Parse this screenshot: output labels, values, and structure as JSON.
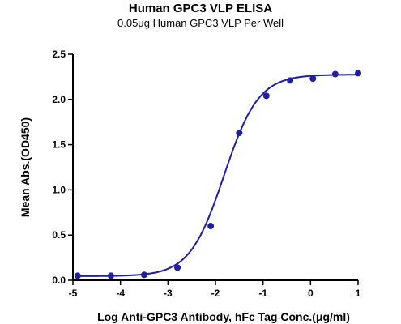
{
  "chart_data": {
    "type": "scatter",
    "title": "Human GPC3 VLP ELISA",
    "subtitle": "0.05μg Human GPC3 VLP Per Well",
    "xlabel": "Log Anti-GPC3 Antibody, hFc Tag Conc.(μg/ml)",
    "ylabel": "Mean Abs.(OD450)",
    "xlim": [
      -5,
      1
    ],
    "ylim": [
      0,
      2.5
    ],
    "xticks": [
      "-5",
      "-4",
      "-3",
      "-2",
      "-1",
      "0",
      "1"
    ],
    "yticks": [
      "0.0",
      "0.5",
      "1.0",
      "1.5",
      "2.0",
      "2.5"
    ],
    "grid": false,
    "colors": {
      "series": "#1f1fa0",
      "axis": "#000000"
    },
    "series": [
      {
        "points": [
          {
            "x": -4.9,
            "y": 0.05
          },
          {
            "x": -4.2,
            "y": 0.05
          },
          {
            "x": -3.5,
            "y": 0.06
          },
          {
            "x": -2.8,
            "y": 0.14
          },
          {
            "x": -2.1,
            "y": 0.6
          },
          {
            "x": -1.5,
            "y": 1.63
          },
          {
            "x": -0.93,
            "y": 2.04
          },
          {
            "x": -0.43,
            "y": 2.21
          },
          {
            "x": 0.05,
            "y": 2.23
          },
          {
            "x": 0.52,
            "y": 2.28
          },
          {
            "x": 1.0,
            "y": 2.29
          }
        ],
        "fit": {
          "model": "4PL",
          "bottom": 0.045,
          "top": 2.275,
          "logEC50": -1.82,
          "hill": 1.2
        }
      }
    ]
  }
}
